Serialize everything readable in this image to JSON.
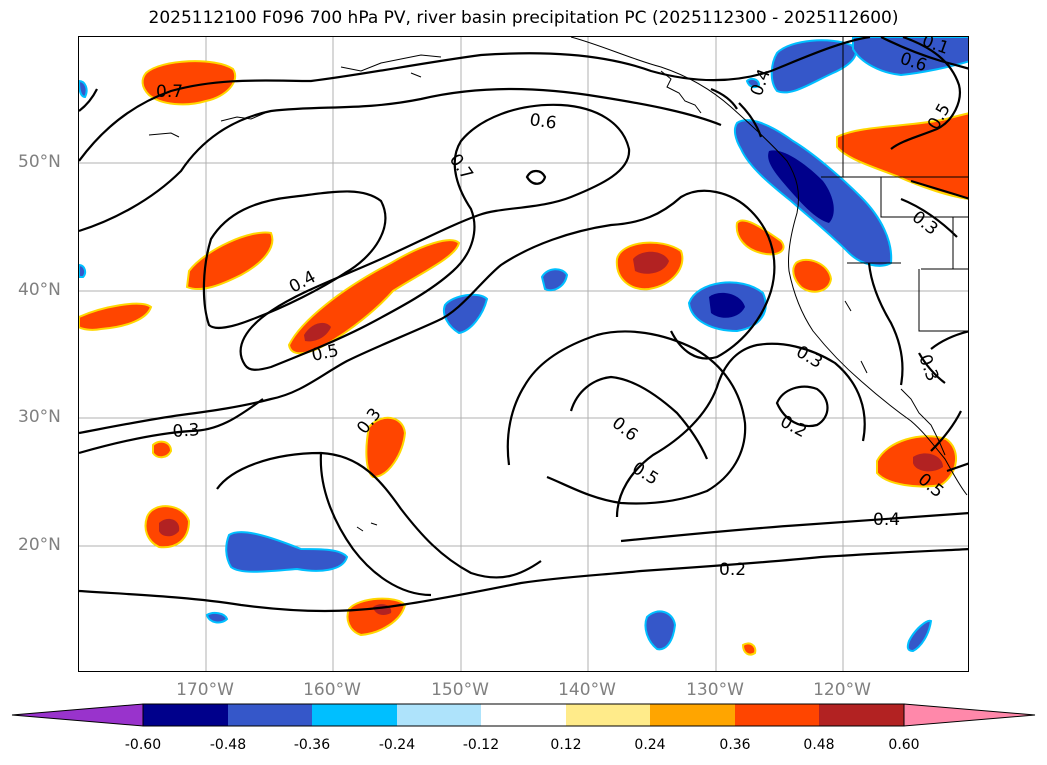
{
  "title": "2025112100 F096 700 hPa PV, river basin precipitation PC (2025112300 - 2025112600)",
  "lat_labels": [
    "50°N",
    "40°N",
    "30°N",
    "20°N"
  ],
  "lon_labels": [
    "170°W",
    "160°W",
    "150°W",
    "140°W",
    "130°W",
    "120°W"
  ],
  "colorbar": {
    "levels": [
      "-0.60",
      "-0.48",
      "-0.36",
      "-0.24",
      "-0.12",
      "0.12",
      "0.24",
      "0.36",
      "0.48",
      "0.60"
    ],
    "colors": [
      "#9933cc",
      "#00008b",
      "#3557c9",
      "#00bfff",
      "#aee3fb",
      "#ffffff",
      "#ffeb8a",
      "#ffa500",
      "#ff4500",
      "#b22222",
      "#ff88aa"
    ]
  },
  "contour_labels": [
    "0.7",
    "0.6",
    "0.7",
    "0.4",
    "0.5",
    "0.3",
    "0.3",
    "0.6",
    "0.5",
    "0.3",
    "0.2",
    "0.4",
    "0.2",
    "0.5",
    "0.6",
    "0.3",
    "0.3",
    "0.5",
    "0.4",
    "0.1"
  ],
  "colors": {
    "frame": "#000000",
    "grid": "#b0b0b0",
    "contour": "#000000",
    "coast": "#000000"
  }
}
